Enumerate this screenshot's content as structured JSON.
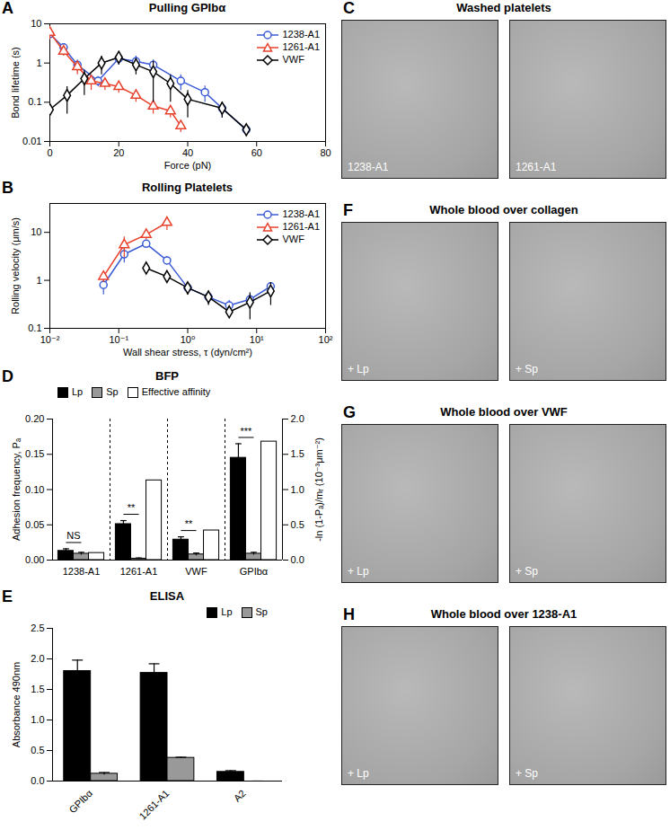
{
  "chart_data": [
    {
      "panel": "A",
      "type": "line",
      "title": "Pulling GPIbα",
      "xlabel": "Force (pN)",
      "ylabel": "Bond lifetime (s)",
      "log": "y",
      "xlim": [
        0,
        80
      ],
      "xticks": [
        0,
        20,
        40,
        60,
        80
      ],
      "ylim": [
        0.01,
        10
      ],
      "yticks": [
        0.01,
        0.1,
        1,
        10
      ],
      "legend": "top-right",
      "series": [
        {
          "name": "1238-A1",
          "color": "#3b5bd6",
          "marker": "circle",
          "line_style": "solid",
          "x": [
            0,
            4,
            8,
            14,
            20,
            25,
            30,
            38,
            45,
            50,
            57
          ],
          "values": [
            5.5,
            2.5,
            0.9,
            0.35,
            1.3,
            1.1,
            0.9,
            0.35,
            0.18,
            0.07,
            0.02
          ],
          "errors": [
            1.5,
            0.6,
            0.3,
            0.1,
            0.4,
            0.4,
            0.3,
            0.15,
            0.08,
            0.03,
            0.004
          ]
        },
        {
          "name": "1261-A1",
          "color": "#e8412c",
          "marker": "triangle",
          "line_style": "solid",
          "x": [
            0,
            4,
            8,
            12,
            16,
            20,
            25,
            30,
            35,
            38
          ],
          "values": [
            6,
            2,
            0.8,
            0.35,
            0.3,
            0.25,
            0.15,
            0.08,
            0.06,
            0.025
          ],
          "errors": [
            2,
            0.5,
            0.3,
            0.15,
            0.1,
            0.08,
            0.05,
            0.03,
            0.02,
            0.008
          ]
        },
        {
          "name": "VWF",
          "color": "#000000",
          "marker": "diamond",
          "line_style": "solid",
          "x": [
            0,
            5,
            10,
            15,
            20,
            25,
            30,
            35,
            40,
            50,
            57
          ],
          "values": [
            0.065,
            0.15,
            0.4,
            1.0,
            1.4,
            0.9,
            0.6,
            0.3,
            0.12,
            0.07,
            0.02
          ],
          "errors": [
            0.02,
            0.1,
            0.25,
            0.5,
            0.5,
            0.4,
            0.5,
            0.2,
            0.08,
            0.03,
            0.004
          ]
        }
      ]
    },
    {
      "panel": "B",
      "type": "line",
      "title": "Rolling Platelets",
      "xlabel": "Wall shear stress, τ (dyn/cm²)",
      "ylabel": "Rolling velocity (μm/s)",
      "log": true,
      "xlim": [
        0.01,
        100
      ],
      "xticks": [
        {
          "value": 0.01,
          "label": "10⁻²"
        },
        {
          "value": 0.1,
          "label": "10⁻¹"
        },
        {
          "value": 1,
          "label": "10⁰"
        },
        {
          "value": 10,
          "label": "10¹"
        },
        {
          "value": 100,
          "label": "10²"
        }
      ],
      "ylim": [
        0.1,
        40
      ],
      "yticks": [
        0.1,
        1,
        10
      ],
      "legend": "top-right",
      "series": [
        {
          "name": "1238-A1",
          "color": "#3b5bd6",
          "marker": "circle",
          "line_style": "solid",
          "x": [
            0.06,
            0.12,
            0.25,
            0.5,
            1,
            2,
            4,
            8,
            16
          ],
          "values": [
            0.8,
            3.5,
            5.8,
            2.6,
            0.7,
            0.45,
            0.3,
            0.4,
            0.75
          ],
          "errors": [
            0.3,
            1.2,
            1.0,
            0.5,
            0.15,
            0.1,
            0.08,
            0.1,
            0.15
          ]
        },
        {
          "name": "1261-A1",
          "color": "#e8412c",
          "marker": "triangle",
          "line_style": "solid",
          "x": [
            0.06,
            0.12,
            0.25,
            0.5
          ],
          "values": [
            1.2,
            5.5,
            9,
            16
          ],
          "errors": [
            0.3,
            2.5,
            2,
            5
          ]
        },
        {
          "name": "VWF",
          "color": "#000000",
          "marker": "diamond",
          "line_style": "solid",
          "x": [
            0.25,
            0.5,
            1,
            2,
            4,
            8,
            16
          ],
          "values": [
            1.8,
            1.2,
            0.7,
            0.45,
            0.22,
            0.35,
            0.6
          ],
          "errors": [
            0.4,
            0.3,
            0.2,
            0.15,
            0.05,
            0.2,
            0.3
          ]
        }
      ]
    },
    {
      "panel": "D",
      "type": "bar",
      "title": "BFP",
      "ylabel": "Adhesion frequency, Pₐ",
      "y2label": "-ln (1-Pₐ)/mᵣ (10⁻³μm⁻²)",
      "categories": [
        "1238-A1",
        "1261-A1",
        "VWF",
        "GPIbα"
      ],
      "ylim": [
        0,
        0.2
      ],
      "yticks": [
        {
          "value": 0,
          "label": "0.00"
        },
        {
          "value": 0.05,
          "label": "0.05"
        },
        {
          "value": 0.1,
          "label": "0.10"
        },
        {
          "value": 0.15,
          "label": "0.15"
        },
        {
          "value": 0.2,
          "label": "0.20"
        }
      ],
      "y2lim": [
        0,
        2
      ],
      "y2ticks": [
        {
          "value": 0,
          "label": "0.0"
        },
        {
          "value": 0.5,
          "label": "0.5"
        },
        {
          "value": 1,
          "label": "1.0"
        },
        {
          "value": 1.5,
          "label": "1.5"
        },
        {
          "value": 2,
          "label": "2.0"
        }
      ],
      "legend": "top-left",
      "series": [
        {
          "name": "Lp",
          "color": "#000000",
          "values": [
            0.013,
            0.051,
            0.029,
            0.145
          ],
          "errors": [
            0.003,
            0.005,
            0.004,
            0.02
          ]
        },
        {
          "name": "Sp",
          "color": "#999999",
          "values": [
            0.009,
            0.002,
            0.008,
            0.009
          ],
          "errors": [
            0.002,
            0.001,
            0.002,
            0.002
          ]
        },
        {
          "name": "Effective affinity",
          "color": "#ffffff",
          "axis": "y2",
          "values": [
            0.1,
            1.13,
            0.42,
            1.68
          ]
        }
      ],
      "annotations": [
        {
          "category": "1238-A1",
          "text": "NS"
        },
        {
          "category": "1261-A1",
          "text": "**"
        },
        {
          "category": "VWF",
          "text": "**"
        },
        {
          "category": "GPIbα",
          "text": "***"
        }
      ]
    },
    {
      "panel": "E",
      "type": "bar",
      "title": "ELISA",
      "ylabel": "Absorbance 490nm",
      "categories": [
        "GPIbα",
        "1261-A1",
        "A2"
      ],
      "ylim": [
        0,
        2.5
      ],
      "yticks": [
        {
          "value": 0,
          "label": "0.0"
        },
        {
          "value": 0.5,
          "label": "0.5"
        },
        {
          "value": 1,
          "label": "1.0"
        },
        {
          "value": 1.5,
          "label": "1.5"
        },
        {
          "value": 2,
          "label": "2.0"
        },
        {
          "value": 2.5,
          "label": "2.5"
        }
      ],
      "legend": "top-right",
      "series": [
        {
          "name": "Lp",
          "color": "#000000",
          "values": [
            1.8,
            1.77,
            0.15
          ],
          "errors": [
            0.18,
            0.15,
            0.02
          ]
        },
        {
          "name": "Sp",
          "color": "#999999",
          "values": [
            0.12,
            0.38,
            0
          ],
          "errors": [
            0.02,
            0.01,
            0
          ]
        }
      ]
    }
  ],
  "image_panels": [
    {
      "panel": "C",
      "title": "Washed platelets",
      "images": [
        "1238-A1",
        "1261-A1"
      ]
    },
    {
      "panel": "F",
      "title": "Whole blood over collagen",
      "images": [
        "+ Lp",
        "+ Sp"
      ]
    },
    {
      "panel": "G",
      "title": "Whole blood over VWF",
      "images": [
        "+ Lp",
        "+ Sp"
      ]
    },
    {
      "panel": "H",
      "title": "Whole blood over 1238-A1",
      "images": [
        "+ Lp",
        "+ Sp"
      ]
    }
  ]
}
